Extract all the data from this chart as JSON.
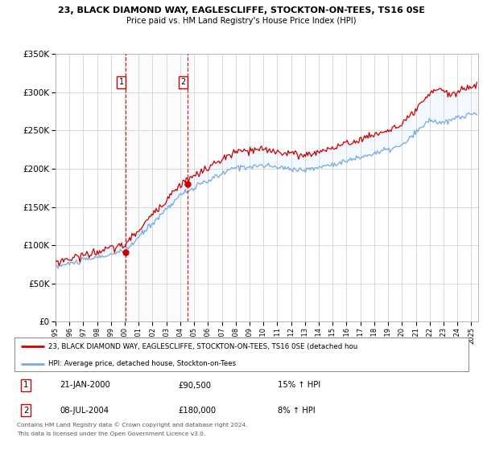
{
  "title1": "23, BLACK DIAMOND WAY, EAGLESCLIFFE, STOCKTON-ON-TEES, TS16 0SE",
  "title2": "Price paid vs. HM Land Registry's House Price Index (HPI)",
  "background_color": "#ffffff",
  "plot_bg_color": "#ffffff",
  "grid_color": "#cccccc",
  "sale1_date_num": 2000.06,
  "sale1_price": 90500,
  "sale1_hpi_note": "15% ↑ HPI",
  "sale1_date_str": "21-JAN-2000",
  "sale2_date_num": 2004.52,
  "sale2_price": 180000,
  "sale2_hpi_note": "8% ↑ HPI",
  "sale2_date_str": "08-JUL-2004",
  "red_line_color": "#cc0000",
  "blue_line_color": "#7aabdc",
  "marker_color": "#cc0000",
  "annotation_box_color": "#cc0000",
  "dashed_line_color": "#cc0000",
  "xmin": 1995.0,
  "xmax": 2025.5,
  "ymin": 0,
  "ymax": 350000,
  "yticks": [
    0,
    50000,
    100000,
    150000,
    200000,
    250000,
    300000,
    350000
  ],
  "ytick_labels": [
    "£0",
    "£50K",
    "£100K",
    "£150K",
    "£200K",
    "£250K",
    "£300K",
    "£350K"
  ],
  "legend_red_label": "23, BLACK DIAMOND WAY, EAGLESCLIFFE, STOCKTON-ON-TEES, TS16 0SE (detached hou",
  "legend_blue_label": "HPI: Average price, detached house, Stockton-on-Tees",
  "footer1": "Contains HM Land Registry data © Crown copyright and database right 2024.",
  "footer2": "This data is licensed under the Open Government Licence v3.0."
}
